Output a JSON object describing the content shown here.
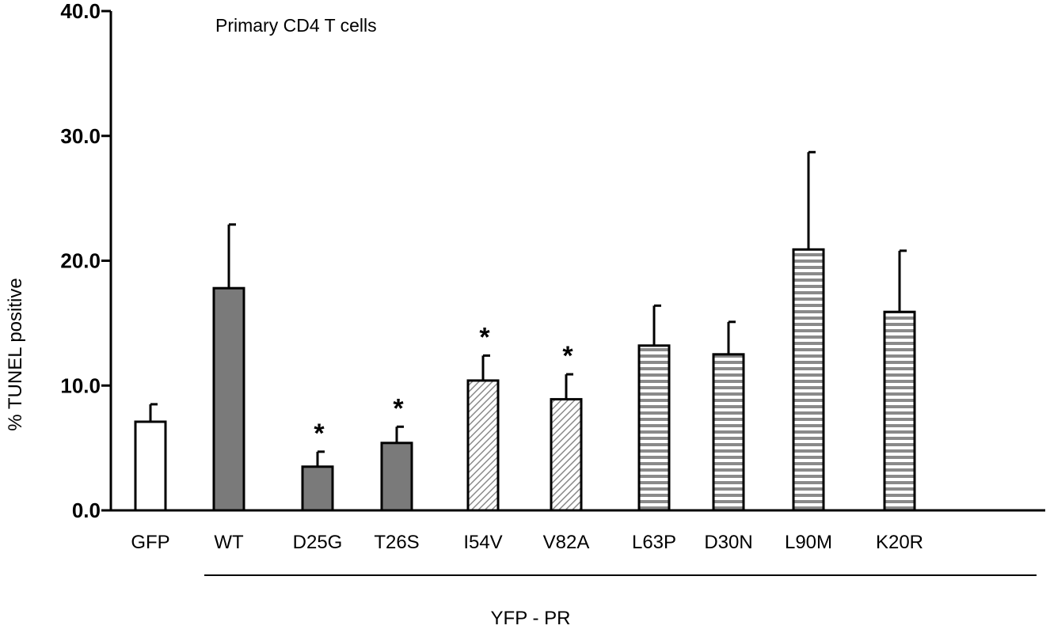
{
  "chart_data": {
    "type": "bar",
    "title": "Primary CD4 T cells",
    "ylabel": "% TUNEL positive",
    "group_label": "YFP - PR",
    "ylim": [
      0,
      40
    ],
    "yticks": [
      "0.0",
      "10.0",
      "20.0",
      "30.0",
      "40.0"
    ],
    "categories": [
      "GFP",
      "WT",
      "D25G",
      "T26S",
      "I54V",
      "V82A",
      "L63P",
      "D30N",
      "L90M",
      "K20R"
    ],
    "values": [
      7.1,
      17.8,
      3.5,
      5.4,
      10.4,
      8.9,
      13.2,
      12.5,
      20.9,
      15.9
    ],
    "errors": [
      1.4,
      5.1,
      1.2,
      1.3,
      2.0,
      2.0,
      3.2,
      2.6,
      7.8,
      4.9
    ],
    "significance": [
      "",
      "",
      "*",
      "*",
      "*",
      "*",
      "",
      "",
      "",
      ""
    ],
    "fills": [
      "white",
      "solid-gray",
      "solid-gray",
      "solid-gray",
      "diagonal-hatch",
      "diagonal-hatch",
      "horizontal-hatch",
      "horizontal-hatch",
      "horizontal-hatch",
      "horizontal-hatch"
    ],
    "colors": {
      "solid": "#7a7a7a",
      "hatch": "#8a8a8a",
      "outline": "#000000"
    },
    "grid": false
  }
}
